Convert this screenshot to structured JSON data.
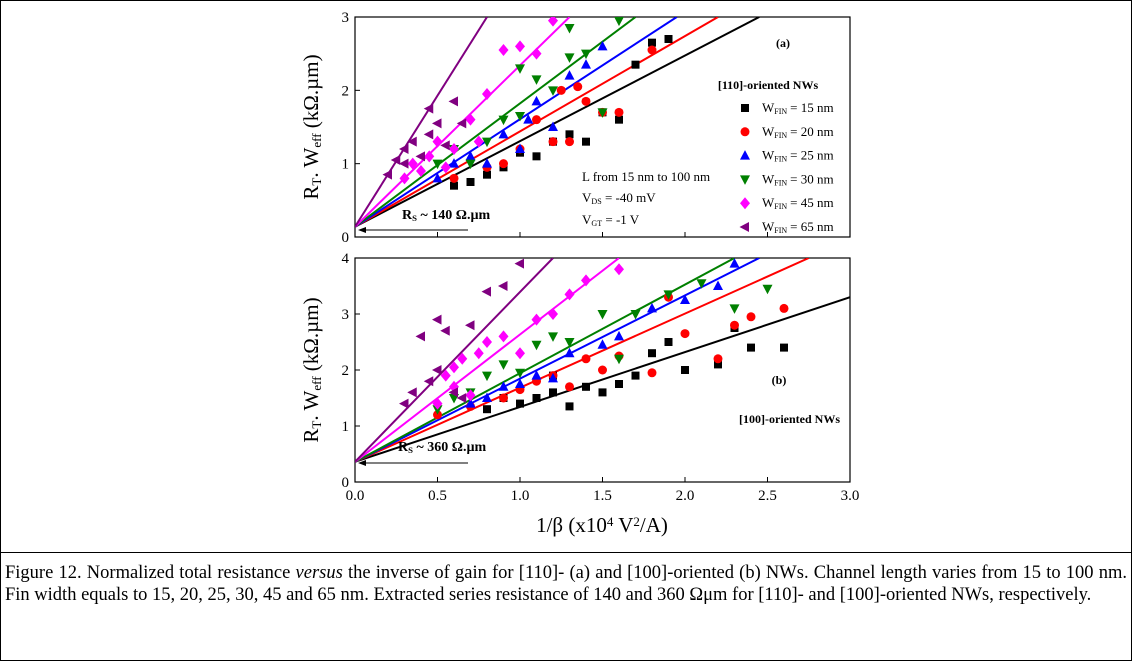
{
  "chart_data": [
    {
      "type": "scatter",
      "ylim": [
        0,
        3
      ],
      "yticks": [
        0,
        1,
        2,
        3
      ],
      "xlim": [
        0,
        3
      ],
      "xticks": [
        {
          "value": 0,
          "label": "0.0"
        },
        {
          "value": 0.5,
          "label": "0.5"
        },
        {
          "value": 1,
          "label": "1.0"
        },
        {
          "value": 1.5,
          "label": "1.5"
        },
        {
          "value": 2,
          "label": "2.0"
        },
        {
          "value": 2.5,
          "label": "2.5"
        },
        {
          "value": 3,
          "label": "3.0"
        }
      ],
      "show_xtick_labels": false,
      "y_label": [
        {
          "text": "R"
        },
        {
          "text": "T",
          "sub": true
        },
        {
          "text": ". W"
        },
        {
          "text": "eff",
          "sub": true
        },
        {
          "text": " (kΩ.µm)"
        }
      ],
      "legend": {
        "title": "[110]-oriented NWs",
        "prefix": "W",
        "prefix_sub": "FIN"
      },
      "annotations": [
        {
          "parts": [
            {
              "text": "(a)"
            }
          ]
        },
        {
          "parts": [
            {
              "text": "L from 15 nm to 100 nm"
            }
          ]
        },
        {
          "parts": [
            {
              "text": "V"
            },
            {
              "text": "DS",
              "sub": true
            },
            {
              "text": " = -40 mV"
            }
          ]
        },
        {
          "parts": [
            {
              "text": "V"
            },
            {
              "text": "GT",
              "sub": true
            },
            {
              "text": " = -1 V"
            }
          ]
        },
        {
          "parts": [
            {
              "text": "R"
            },
            {
              "text": "S",
              "sub": true
            },
            {
              "text": " ~ 140 Ω.µm"
            }
          ]
        }
      ],
      "series": [
        {
          "name": "= 15 nm",
          "color": "#000000",
          "marker": "square",
          "x": [
            0.6,
            0.7,
            0.8,
            0.9,
            1.0,
            1.1,
            1.2,
            1.3,
            1.4,
            1.5,
            1.6,
            1.7,
            1.8,
            1.9
          ],
          "values": [
            0.7,
            0.75,
            0.85,
            0.95,
            1.15,
            1.1,
            1.3,
            1.4,
            1.3,
            1.7,
            1.6,
            2.35,
            2.65,
            2.7
          ],
          "fit": {
            "x": [
              0,
              2.45
            ],
            "y": [
              0.14,
              3
            ]
          }
        },
        {
          "name": "= 20 nm",
          "color": "#ff0000",
          "marker": "circle",
          "x": [
            0.6,
            0.8,
            0.9,
            1.0,
            1.1,
            1.2,
            1.25,
            1.3,
            1.4,
            1.5,
            1.6,
            1.8,
            1.35
          ],
          "values": [
            0.8,
            0.95,
            1.0,
            1.2,
            1.6,
            1.3,
            2.0,
            1.3,
            1.85,
            1.7,
            1.7,
            2.55,
            2.05
          ],
          "fit": {
            "x": [
              0,
              2.2
            ],
            "y": [
              0.14,
              3
            ]
          }
        },
        {
          "name": "= 25 nm",
          "color": "#0000ff",
          "marker": "triangle-up",
          "x": [
            0.5,
            0.6,
            0.7,
            0.8,
            0.9,
            1.0,
            1.05,
            1.1,
            1.2,
            1.3,
            1.4,
            1.5
          ],
          "values": [
            0.8,
            1.0,
            1.1,
            1.0,
            1.4,
            1.2,
            1.6,
            1.85,
            1.5,
            2.2,
            2.35,
            2.6
          ],
          "fit": {
            "x": [
              0,
              1.95
            ],
            "y": [
              0.14,
              3
            ]
          }
        },
        {
          "name": "= 30 nm",
          "color": "#008000",
          "marker": "triangle-down",
          "x": [
            0.5,
            0.6,
            0.7,
            0.8,
            0.9,
            1.0,
            1.1,
            1.2,
            1.3,
            1.4,
            1.5,
            1.6,
            1.3,
            1.0
          ],
          "values": [
            1.0,
            1.2,
            1.0,
            1.3,
            1.6,
            1.65,
            2.15,
            2.0,
            2.45,
            2.5,
            1.7,
            2.95,
            2.85,
            2.3
          ],
          "fit": {
            "x": [
              0,
              1.7
            ],
            "y": [
              0.14,
              3
            ]
          }
        },
        {
          "name": "= 45 nm",
          "color": "#ff00ff",
          "marker": "diamond",
          "x": [
            0.3,
            0.35,
            0.4,
            0.45,
            0.5,
            0.55,
            0.6,
            0.7,
            0.8,
            0.9,
            1.0,
            1.1,
            1.2,
            0.75
          ],
          "values": [
            0.8,
            1.0,
            0.9,
            1.1,
            1.3,
            0.95,
            1.2,
            1.6,
            1.95,
            2.55,
            2.6,
            2.5,
            2.95,
            1.3
          ],
          "fit": {
            "x": [
              0,
              1.3
            ],
            "y": [
              0.14,
              3
            ]
          }
        },
        {
          "name": "= 65 nm",
          "color": "#800080",
          "marker": "triangle-left",
          "x": [
            0.2,
            0.25,
            0.3,
            0.35,
            0.4,
            0.45,
            0.5,
            0.55,
            0.6,
            0.65,
            0.3,
            0.45
          ],
          "values": [
            0.85,
            1.05,
            1.2,
            1.3,
            1.1,
            1.4,
            1.55,
            1.25,
            1.85,
            1.55,
            1.0,
            1.75
          ],
          "fit": {
            "x": [
              0,
              0.8
            ],
            "y": [
              0.14,
              3
            ]
          }
        }
      ]
    },
    {
      "type": "scatter",
      "ylim": [
        0,
        4
      ],
      "yticks": [
        0,
        1,
        2,
        3,
        4
      ],
      "xlim": [
        0,
        3
      ],
      "xticks": [
        {
          "value": 0,
          "label": "0.0"
        },
        {
          "value": 0.5,
          "label": "0.5"
        },
        {
          "value": 1,
          "label": "1.0"
        },
        {
          "value": 1.5,
          "label": "1.5"
        },
        {
          "value": 2,
          "label": "2.0"
        },
        {
          "value": 2.5,
          "label": "2.5"
        },
        {
          "value": 3,
          "label": "3.0"
        }
      ],
      "show_xtick_labels": true,
      "x_label": [
        {
          "text": "1/β (x10"
        },
        {
          "text": "4",
          "sup": true
        },
        {
          "text": " V"
        },
        {
          "text": "2",
          "sup": true
        },
        {
          "text": "/A)"
        }
      ],
      "y_label": [
        {
          "text": "R"
        },
        {
          "text": "T",
          "sub": true
        },
        {
          "text": ". W"
        },
        {
          "text": "eff",
          "sub": true
        },
        {
          "text": " (kΩ.µm)"
        }
      ],
      "annotations": [
        {
          "parts": [
            {
              "text": "(b)"
            }
          ]
        },
        {
          "parts": [
            {
              "text": "[100]-oriented NWs"
            }
          ]
        },
        {
          "parts": [
            {
              "text": "R"
            },
            {
              "text": "S",
              "sub": true
            },
            {
              "text": " ~ 360 Ω.µm"
            }
          ]
        }
      ],
      "series": [
        {
          "color": "#000000",
          "marker": "square",
          "x": [
            0.8,
            0.9,
            1.0,
            1.1,
            1.2,
            1.3,
            1.4,
            1.5,
            1.6,
            1.7,
            1.8,
            1.9,
            2.0,
            2.2,
            2.3,
            2.4,
            2.6,
            1.2
          ],
          "values": [
            1.3,
            1.5,
            1.4,
            1.5,
            1.6,
            1.35,
            1.7,
            1.6,
            1.75,
            1.9,
            2.3,
            2.5,
            2.0,
            2.1,
            2.75,
            2.4,
            2.4,
            1.9
          ],
          "fit": {
            "x": [
              0,
              3
            ],
            "y": [
              0.36,
              3.3
            ]
          }
        },
        {
          "color": "#ff0000",
          "marker": "circle",
          "x": [
            0.5,
            0.7,
            0.9,
            1.0,
            1.1,
            1.2,
            1.3,
            1.4,
            1.5,
            1.6,
            1.8,
            2.0,
            2.2,
            2.4,
            2.6,
            1.9,
            2.3
          ],
          "values": [
            1.2,
            1.35,
            1.5,
            1.65,
            1.8,
            1.9,
            1.7,
            2.2,
            2.0,
            2.25,
            1.95,
            2.65,
            2.2,
            2.95,
            3.1,
            3.3,
            2.8
          ],
          "fit": {
            "x": [
              0,
              2.75
            ],
            "y": [
              0.36,
              4
            ]
          }
        },
        {
          "color": "#0000ff",
          "marker": "triangle-up",
          "x": [
            0.7,
            0.8,
            0.9,
            1.0,
            1.1,
            1.2,
            1.3,
            1.5,
            1.6,
            1.8,
            2.0,
            2.3,
            2.2
          ],
          "values": [
            1.4,
            1.5,
            1.7,
            1.75,
            1.9,
            1.85,
            2.3,
            2.45,
            2.6,
            3.1,
            3.25,
            3.9,
            3.5
          ],
          "fit": {
            "x": [
              0,
              2.45
            ],
            "y": [
              0.36,
              4
            ]
          }
        },
        {
          "color": "#008000",
          "marker": "triangle-down",
          "x": [
            0.5,
            0.6,
            0.7,
            0.8,
            0.9,
            1.0,
            1.1,
            1.2,
            1.3,
            1.5,
            1.7,
            1.9,
            2.1,
            2.3,
            2.5,
            1.6
          ],
          "values": [
            1.3,
            1.5,
            1.6,
            1.9,
            2.1,
            1.95,
            2.45,
            2.6,
            2.5,
            3.0,
            3.0,
            3.35,
            3.55,
            3.1,
            3.45,
            2.2
          ],
          "fit": {
            "x": [
              0,
              2.3
            ],
            "y": [
              0.36,
              4
            ]
          }
        },
        {
          "color": "#ff00ff",
          "marker": "diamond",
          "x": [
            0.5,
            0.55,
            0.6,
            0.65,
            0.7,
            0.75,
            0.8,
            0.9,
            1.0,
            1.1,
            1.2,
            1.3,
            1.4,
            1.6,
            0.6
          ],
          "values": [
            1.4,
            1.9,
            1.7,
            2.2,
            1.55,
            2.3,
            2.5,
            2.6,
            2.3,
            2.9,
            3.0,
            3.35,
            3.6,
            3.8,
            2.05
          ],
          "fit": {
            "x": [
              0,
              1.6
            ],
            "y": [
              0.36,
              4
            ]
          }
        },
        {
          "color": "#800080",
          "marker": "triangle-left",
          "x": [
            0.3,
            0.35,
            0.4,
            0.45,
            0.5,
            0.55,
            0.6,
            0.7,
            0.8,
            0.9,
            1.0,
            0.5,
            0.65
          ],
          "values": [
            1.4,
            1.6,
            2.6,
            1.8,
            2.0,
            2.7,
            1.6,
            2.8,
            3.4,
            3.5,
            3.9,
            2.9,
            1.5
          ],
          "fit": {
            "x": [
              0,
              1.2
            ],
            "y": [
              0.36,
              4
            ]
          }
        }
      ]
    }
  ],
  "caption": {
    "before": "Figure 12. Normalized total resistance ",
    "italic": "versus",
    "after": " the inverse of gain for [110]- (a) and [100]-oriented (b) NWs. Channel length varies from 15 to 100 nm. Fin width equals to 15, 20, 25, 30, 45 and 65 nm. Extracted series resistance of 140 and 360 Ωμm for [110]- and [100]-oriented NWs, respectively."
  }
}
